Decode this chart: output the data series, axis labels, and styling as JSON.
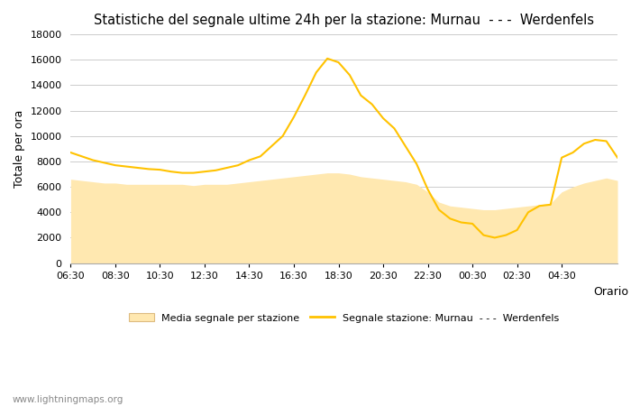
{
  "title": "Statistiche del segnale ultime 24h per la stazione: Murnau  - - -  Werdenfels",
  "xlabel": "Orario",
  "ylabel": "Totale per ora",
  "ylim": [
    0,
    18000
  ],
  "yticks": [
    0,
    2000,
    4000,
    6000,
    8000,
    10000,
    12000,
    14000,
    16000,
    18000
  ],
  "x_labels": [
    "06:30",
    "08:30",
    "10:30",
    "12:30",
    "14:30",
    "16:30",
    "18:30",
    "20:30",
    "22:30",
    "00:30",
    "02:30",
    "04:30"
  ],
  "tick_positions": [
    0,
    4,
    8,
    12,
    16,
    20,
    24,
    28,
    32,
    36,
    40,
    44
  ],
  "watermark": "www.lightningmaps.org",
  "legend_label_area": "Media segnale per stazione",
  "legend_label_line": "Segnale stazione: Murnau  - - -  Werdenfels",
  "line_color": "#FFC200",
  "fill_color": "#FFE8B0",
  "fill_edge_color": "#DDBB80",
  "background_color": "#FFFFFF",
  "line_values": [
    8700,
    8400,
    8100,
    7900,
    7700,
    7600,
    7500,
    7400,
    7350,
    7200,
    7100,
    7100,
    7200,
    7300,
    7500,
    7700,
    8100,
    8400,
    9200,
    10000,
    11500,
    13200,
    15000,
    16100,
    15800,
    14800,
    13200,
    12500,
    11400,
    10600,
    9200,
    7800,
    5800,
    4200,
    3500,
    3200,
    3100,
    2200,
    2000,
    2200,
    2600,
    4000,
    4500,
    4600,
    8300,
    8700,
    9400,
    9700,
    9600,
    8300
  ],
  "fill_values": [
    6600,
    6500,
    6400,
    6300,
    6300,
    6200,
    6200,
    6200,
    6200,
    6200,
    6200,
    6100,
    6200,
    6200,
    6200,
    6300,
    6400,
    6500,
    6600,
    6700,
    6800,
    6900,
    7000,
    7100,
    7100,
    7000,
    6800,
    6700,
    6600,
    6500,
    6400,
    6200,
    5600,
    4800,
    4500,
    4400,
    4300,
    4200,
    4200,
    4300,
    4400,
    4500,
    4600,
    4700,
    5600,
    6000,
    6300,
    6500,
    6700,
    6500
  ]
}
